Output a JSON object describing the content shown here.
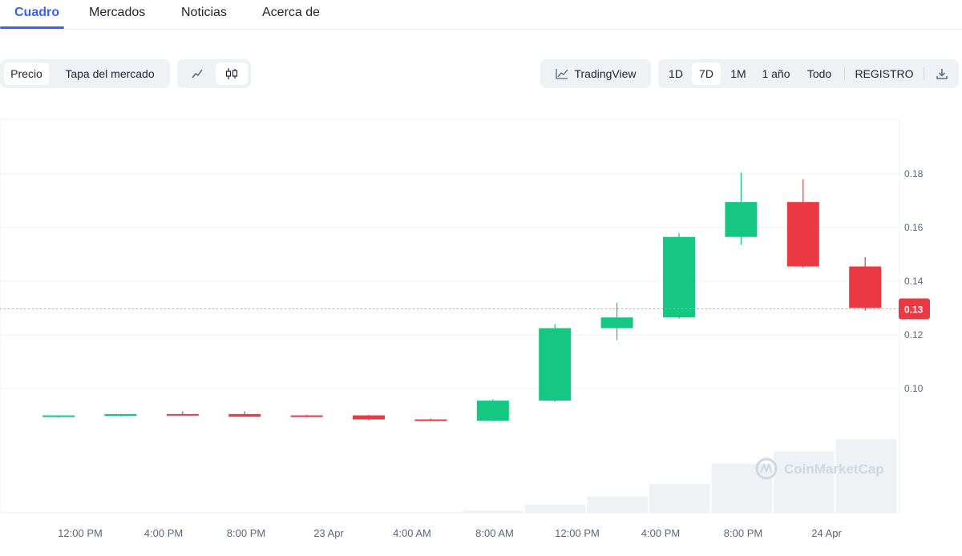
{
  "tabs": [
    {
      "label": "Cuadro",
      "active": true
    },
    {
      "label": "Mercados",
      "active": false
    },
    {
      "label": "Noticias",
      "active": false
    },
    {
      "label": "Acerca de",
      "active": false
    }
  ],
  "toolbar": {
    "metric": {
      "price_label": "Precio",
      "market_cap_label": "Tapa del mercado",
      "selected": "Precio"
    },
    "chart_style": {
      "line_icon": "line-chart-icon",
      "candle_icon": "candlestick-icon",
      "selected": "candlestick"
    },
    "tradingview_label": "TradingView",
    "ranges": [
      "1D",
      "7D",
      "1M",
      "1 año",
      "Todo"
    ],
    "range_selected": "7D",
    "log_label": "REGISTRO",
    "download_icon": "download-icon"
  },
  "colors": {
    "up": "#16c784",
    "down": "#ea3943",
    "grid": "#eff2f5",
    "axis_text": "#58667e",
    "accent": "#3861fb"
  },
  "chart_data": {
    "type": "candlestick",
    "watermark": "CoinMarketCap",
    "current_price": 0.13,
    "current_price_label": "0.13",
    "ylim": [
      0.076,
      0.2
    ],
    "yticks": [
      0.1,
      0.12,
      0.14,
      0.16,
      0.18
    ],
    "ytick_labels": [
      "0.10",
      "0.12",
      "0.14",
      "0.16",
      "0.18"
    ],
    "xticks": [
      "12:00 PM",
      "4:00 PM",
      "8:00 PM",
      "23 Apr",
      "4:00 AM",
      "8:00 AM",
      "12:00 PM",
      "4:00 PM",
      "8:00 PM",
      "24 Apr"
    ],
    "candles": [
      {
        "o": 0.0895,
        "h": 0.09,
        "l": 0.0892,
        "c": 0.09
      },
      {
        "o": 0.0898,
        "h": 0.0905,
        "l": 0.0896,
        "c": 0.0905
      },
      {
        "o": 0.0905,
        "h": 0.0915,
        "l": 0.09,
        "c": 0.09
      },
      {
        "o": 0.0905,
        "h": 0.0915,
        "l": 0.0895,
        "c": 0.0895
      },
      {
        "o": 0.09,
        "h": 0.0902,
        "l": 0.0893,
        "c": 0.0895
      },
      {
        "o": 0.09,
        "h": 0.0902,
        "l": 0.0882,
        "c": 0.0885
      },
      {
        "o": 0.0885,
        "h": 0.0888,
        "l": 0.088,
        "c": 0.088
      },
      {
        "o": 0.088,
        "h": 0.096,
        "l": 0.0878,
        "c": 0.0955
      },
      {
        "o": 0.0955,
        "h": 0.124,
        "l": 0.095,
        "c": 0.1225
      },
      {
        "o": 0.1225,
        "h": 0.132,
        "l": 0.118,
        "c": 0.1265
      },
      {
        "o": 0.1265,
        "h": 0.158,
        "l": 0.126,
        "c": 0.1565
      },
      {
        "o": 0.1565,
        "h": 0.1805,
        "l": 0.1535,
        "c": 0.1695
      },
      {
        "o": 0.1695,
        "h": 0.178,
        "l": 0.145,
        "c": 0.1455
      },
      {
        "o": 0.1455,
        "h": 0.149,
        "l": 0.129,
        "c": 0.13
      }
    ],
    "volume": [
      0,
      0,
      0,
      0,
      0,
      0,
      0,
      1,
      4,
      8,
      14,
      24,
      30,
      36
    ]
  }
}
